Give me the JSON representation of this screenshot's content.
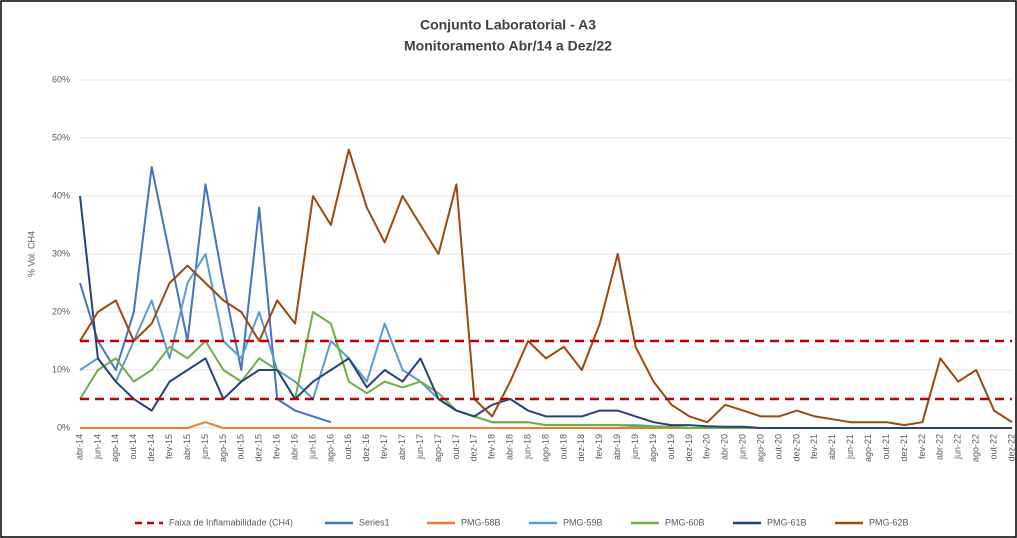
{
  "chart_data": {
    "type": "line",
    "title": "Conjunto Laboratorial - A3",
    "subtitle": "Monitoramento Abr/14 a Dez/22",
    "y_label": "% Vol. CH4",
    "ylim": [
      0,
      60
    ],
    "yticks": [
      {
        "value": 0,
        "label": "0%"
      },
      {
        "value": 10,
        "label": "10%"
      },
      {
        "value": 20,
        "label": "20%"
      },
      {
        "value": 30,
        "label": "30%"
      },
      {
        "value": 40,
        "label": "40%"
      },
      {
        "value": 50,
        "label": "50%"
      },
      {
        "value": 60,
        "label": "60%"
      }
    ],
    "grid": true,
    "legend": "bottom",
    "categories": [
      "abr-14",
      "jun-14",
      "ago-14",
      "out-14",
      "dez-14",
      "fev-15",
      "abr-15",
      "jun-15",
      "ago-15",
      "out-15",
      "dez-15",
      "fev-16",
      "abr-16",
      "jun-16",
      "ago-16",
      "out-16",
      "dez-16",
      "fev-17",
      "abr-17",
      "jun-17",
      "ago-17",
      "out-17",
      "dez-17",
      "fev-18",
      "abr-18",
      "jun-18",
      "ago-18",
      "out-18",
      "dez-18",
      "fev-19",
      "abr-19",
      "jun-19",
      "ago-19",
      "out-19",
      "dez-19",
      "fev-20",
      "abr-20",
      "jun-20",
      "ago-20",
      "out-20",
      "dez-20",
      "fev-21",
      "abr-21",
      "jun-21",
      "ago-21",
      "out-21",
      "dez-21",
      "fev-22",
      "abr-22",
      "jun-22",
      "ago-22",
      "out-22",
      "dez-22"
    ],
    "reference": {
      "name": "Faixa de Inflamabilidade (CH4)",
      "color": "#c00000",
      "values": [
        5,
        15
      ]
    },
    "series": [
      {
        "name": "Series1",
        "color": "#4472c4",
        "values": [
          25,
          15,
          10,
          20,
          45,
          30,
          15,
          42,
          25,
          10,
          38,
          5,
          3,
          2,
          1,
          null,
          null,
          null,
          null,
          null,
          null,
          null,
          null,
          null,
          null,
          null,
          null,
          null,
          null,
          null,
          null,
          null,
          null,
          null,
          null,
          null,
          null,
          null,
          null,
          null,
          null,
          null,
          null,
          null,
          null,
          null,
          null,
          null,
          null,
          null,
          null,
          null,
          null
        ]
      },
      {
        "name": "PMG-58B",
        "color": "#ed7d31",
        "values": [
          0,
          0,
          0,
          0,
          0,
          0,
          0,
          1,
          0,
          0,
          0,
          0,
          0,
          0,
          0,
          0,
          0,
          0,
          0,
          0,
          0,
          0,
          0,
          0,
          0,
          0,
          0,
          0,
          0,
          0,
          0,
          0,
          0,
          0,
          0,
          0,
          0,
          0,
          0,
          0,
          0,
          0,
          0,
          0,
          0,
          0,
          0,
          0,
          0,
          0,
          0,
          0,
          0
        ]
      },
      {
        "name": "PMG-59B",
        "color": "#5b9bd5",
        "values": [
          10,
          12,
          8,
          15,
          22,
          12,
          25,
          30,
          15,
          12,
          20,
          10,
          8,
          5,
          15,
          12,
          8,
          18,
          10,
          8,
          5,
          3,
          2,
          1,
          1,
          1,
          0.5,
          0.5,
          0.5,
          0.5,
          0.5,
          0.5,
          0.3,
          0.2,
          0,
          0,
          0,
          0,
          0,
          0,
          0,
          0,
          0,
          0,
          0,
          0,
          0,
          0,
          0,
          0,
          0,
          0,
          0
        ]
      },
      {
        "name": "PMG-60B",
        "color": "#70ad47",
        "values": [
          5,
          10,
          12,
          8,
          10,
          14,
          12,
          15,
          10,
          8,
          12,
          10,
          5,
          20,
          18,
          8,
          6,
          8,
          7,
          8,
          6,
          3,
          2,
          1,
          1,
          1,
          0.5,
          0.5,
          0.5,
          0.5,
          0.5,
          0.3,
          0.2,
          0.2,
          0,
          0,
          0,
          0,
          0,
          0,
          0,
          0,
          0,
          0,
          0,
          0,
          0,
          0,
          0,
          0,
          0,
          0,
          0
        ]
      },
      {
        "name": "PMG-61B",
        "color": "#264478",
        "values": [
          40,
          12,
          8,
          5,
          3,
          8,
          10,
          12,
          5,
          8,
          10,
          10,
          5,
          8,
          10,
          12,
          7,
          10,
          8,
          12,
          5,
          3,
          2,
          4,
          5,
          3,
          2,
          2,
          2,
          3,
          3,
          2,
          1,
          0.5,
          0.5,
          0.3,
          0.2,
          0.2,
          0,
          0,
          0,
          0,
          0,
          0,
          0,
          0,
          0,
          0,
          0,
          0,
          0,
          0,
          0
        ]
      },
      {
        "name": "PMG-62B",
        "color": "#9e480e",
        "values": [
          15,
          20,
          22,
          15,
          18,
          25,
          28,
          25,
          22,
          20,
          15,
          22,
          18,
          40,
          35,
          48,
          38,
          32,
          40,
          35,
          30,
          42,
          5,
          2,
          8,
          15,
          12,
          14,
          10,
          18,
          30,
          14,
          8,
          4,
          2,
          1,
          4,
          3,
          2,
          2,
          3,
          2,
          1.5,
          1,
          1,
          1,
          0.5,
          1,
          12,
          8,
          10,
          3,
          1
        ]
      }
    ]
  }
}
